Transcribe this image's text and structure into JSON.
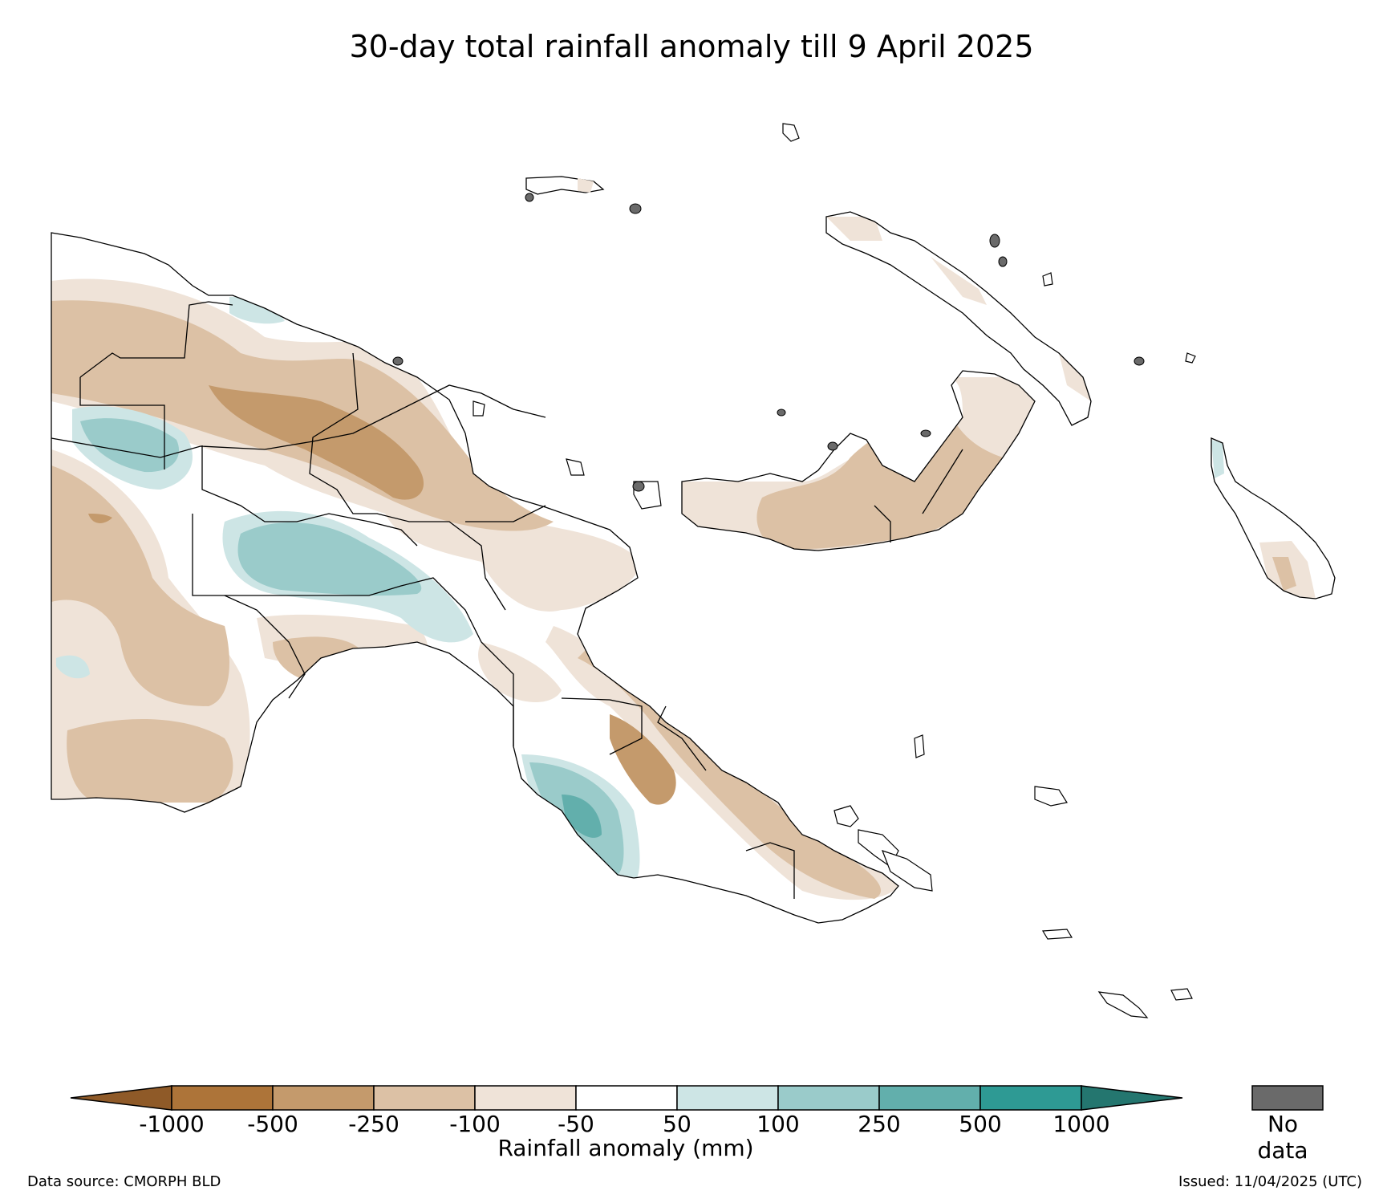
{
  "title": "30-day total rainfall anomaly till 9 April 2025",
  "colorbar": {
    "label": "Rainfall anomaly (mm)",
    "ticks": [
      "-1000",
      "-500",
      "-250",
      "-100",
      "-50",
      "50",
      "100",
      "250",
      "500",
      "1000"
    ],
    "colors": [
      "#8f5a28",
      "#ad7439",
      "#c49a6c",
      "#dcc1a5",
      "#efe3d8",
      "#ffffff",
      "#cde5e5",
      "#9acbca",
      "#62afac",
      "#2e9a94",
      "#24766f"
    ],
    "extend": "both"
  },
  "no_data": {
    "label": "No data",
    "color": "#6a6a6a"
  },
  "footer": {
    "source": "Data source: CMORPH BLD",
    "issued": "Issued: 11/04/2025 (UTC)"
  },
  "map": {
    "region_names": [
      "mainland",
      "new-britain",
      "new-ireland",
      "bougainville",
      "manus",
      "buka"
    ]
  }
}
